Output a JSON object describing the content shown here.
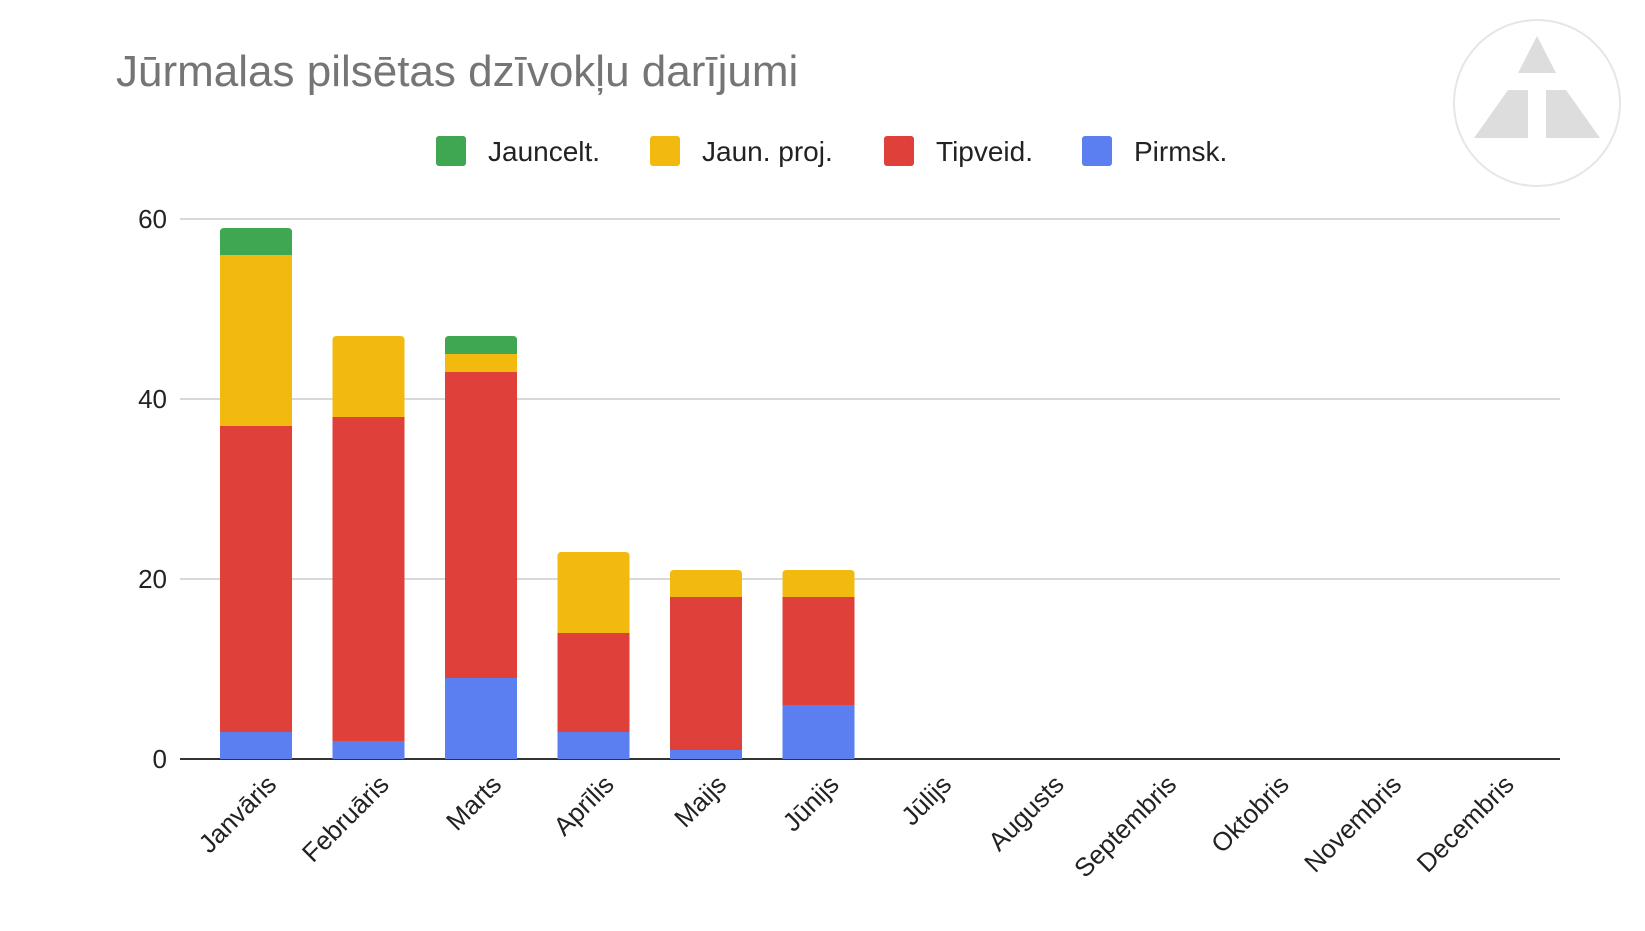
{
  "chart_data": {
    "type": "bar",
    "stacked": true,
    "title": "Jūrmalas pilsētas dzīvokļu darījumi",
    "xlabel": "",
    "ylabel": "",
    "ylim": [
      0,
      60
    ],
    "yticks": [
      0,
      20,
      40,
      60
    ],
    "grid": true,
    "legend_position": "top",
    "categories": [
      "Janvāris",
      "Februāris",
      "Marts",
      "Aprīlis",
      "Maijs",
      "Jūnijs",
      "Jūlijs",
      "Augusts",
      "Septembris",
      "Oktobris",
      "Novembris",
      "Decembris"
    ],
    "series": [
      {
        "name": "Pirmsk.",
        "color": "#5b7ff0",
        "values": [
          3,
          2,
          9,
          3,
          1,
          6,
          null,
          null,
          null,
          null,
          null,
          null
        ]
      },
      {
        "name": "Tipveid.",
        "color": "#e0403a",
        "values": [
          34,
          36,
          34,
          11,
          17,
          12,
          null,
          null,
          null,
          null,
          null,
          null
        ]
      },
      {
        "name": "Jaun. proj.",
        "color": "#f2b90f",
        "values": [
          19,
          9,
          2,
          9,
          3,
          3,
          null,
          null,
          null,
          null,
          null,
          null
        ]
      },
      {
        "name": "Jauncelt.",
        "color": "#3fa652",
        "values": [
          3,
          0,
          2,
          0,
          0,
          0,
          null,
          null,
          null,
          null,
          null,
          null
        ]
      }
    ],
    "legend_order": [
      "Jauncelt.",
      "Jaun. proj.",
      "Tipveid.",
      "Pirmsk."
    ]
  },
  "logo": {
    "name": "triangle-logo-icon",
    "color": "#dddddd"
  }
}
